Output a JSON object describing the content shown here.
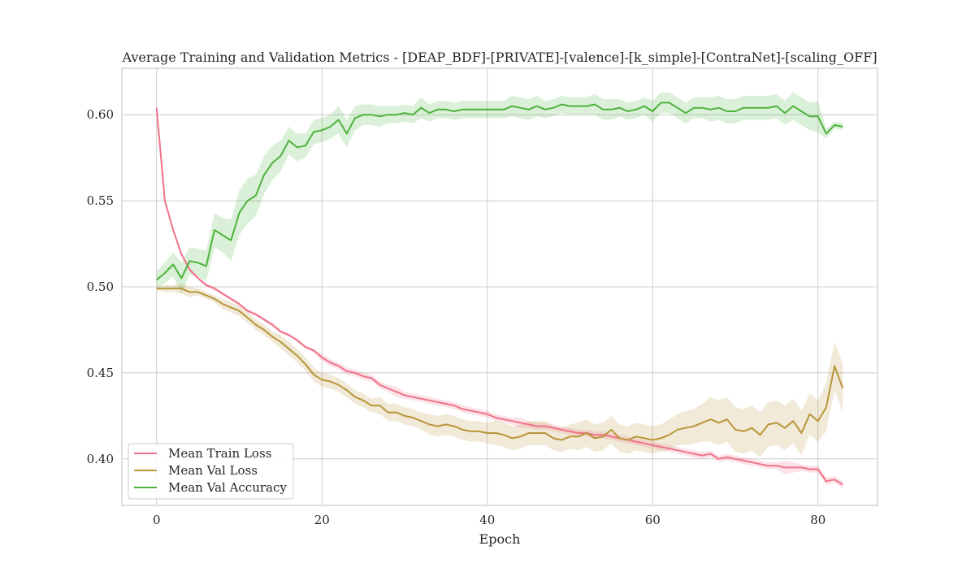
{
  "chart_data": {
    "type": "line",
    "title": "Average Training and Validation Metrics - [DEAP_BDF]-[PRIVATE]-[valence]-[k_simple]-[ContraNet]-[scaling_OFF]",
    "xlabel": "Epoch",
    "ylabel": "",
    "xlim": [
      -4.2,
      87.2
    ],
    "ylim": [
      0.373,
      0.627
    ],
    "xticks": [
      0,
      20,
      40,
      60,
      80
    ],
    "yticks": [
      0.4,
      0.45,
      0.5,
      0.55,
      0.6
    ],
    "xtick_labels": [
      "0",
      "20",
      "40",
      "60",
      "80"
    ],
    "ytick_labels": [
      "0.40",
      "0.45",
      "0.50",
      "0.55",
      "0.60"
    ],
    "grid": true,
    "legend_position": "lower-left",
    "x": [
      0,
      1,
      2,
      3,
      4,
      5,
      6,
      7,
      8,
      9,
      10,
      11,
      12,
      13,
      14,
      15,
      16,
      17,
      18,
      19,
      20,
      21,
      22,
      23,
      24,
      25,
      26,
      27,
      28,
      29,
      30,
      31,
      32,
      33,
      34,
      35,
      36,
      37,
      38,
      39,
      40,
      41,
      42,
      43,
      44,
      45,
      46,
      47,
      48,
      49,
      50,
      51,
      52,
      53,
      54,
      55,
      56,
      57,
      58,
      59,
      60,
      61,
      62,
      63,
      64,
      65,
      66,
      67,
      68,
      69,
      70,
      71,
      72,
      73,
      74,
      75,
      76,
      77,
      78,
      79,
      80,
      81,
      82,
      83
    ],
    "series": [
      {
        "name": "Mean Train Loss",
        "color": "#f0728a",
        "values": [
          0.604,
          0.55,
          0.533,
          0.519,
          0.51,
          0.505,
          0.501,
          0.499,
          0.496,
          0.493,
          0.49,
          0.486,
          0.484,
          0.481,
          0.478,
          0.474,
          0.472,
          0.469,
          0.465,
          0.463,
          0.459,
          0.456,
          0.454,
          0.451,
          0.45,
          0.448,
          0.447,
          0.443,
          0.441,
          0.439,
          0.437,
          0.436,
          0.435,
          0.434,
          0.433,
          0.432,
          0.431,
          0.429,
          0.428,
          0.427,
          0.426,
          0.424,
          0.423,
          0.422,
          0.421,
          0.42,
          0.419,
          0.419,
          0.418,
          0.417,
          0.416,
          0.415,
          0.415,
          0.414,
          0.414,
          0.413,
          0.412,
          0.411,
          0.41,
          0.409,
          0.408,
          0.407,
          0.406,
          0.405,
          0.404,
          0.403,
          0.402,
          0.403,
          0.4,
          0.401,
          0.4,
          0.399,
          0.398,
          0.397,
          0.396,
          0.396,
          0.395,
          0.395,
          0.395,
          0.394,
          0.394,
          0.387,
          0.388,
          0.385
        ],
        "band_width": [
          0.001,
          0.001,
          0.001,
          0.001,
          0.001,
          0.001,
          0.001,
          0.001,
          0.001,
          0.001,
          0.001,
          0.001,
          0.001,
          0.001,
          0.001,
          0.001,
          0.001,
          0.001,
          0.001,
          0.001,
          0.002,
          0.002,
          0.002,
          0.002,
          0.002,
          0.002,
          0.002,
          0.002,
          0.002,
          0.003,
          0.002,
          0.002,
          0.002,
          0.002,
          0.002,
          0.002,
          0.002,
          0.002,
          0.002,
          0.002,
          0.002,
          0.002,
          0.002,
          0.002,
          0.003,
          0.002,
          0.002,
          0.002,
          0.002,
          0.002,
          0.002,
          0.002,
          0.002,
          0.002,
          0.002,
          0.002,
          0.002,
          0.002,
          0.002,
          0.002,
          0.002,
          0.002,
          0.002,
          0.002,
          0.002,
          0.002,
          0.002,
          0.002,
          0.002,
          0.002,
          0.002,
          0.002,
          0.002,
          0.002,
          0.002,
          0.002,
          0.004,
          0.003,
          0.002,
          0.002,
          0.002,
          0.002,
          0.002,
          0.002
        ]
      },
      {
        "name": "Mean Val Loss",
        "color": "#b8963a",
        "values": [
          0.499,
          0.499,
          0.499,
          0.499,
          0.497,
          0.497,
          0.495,
          0.493,
          0.49,
          0.488,
          0.486,
          0.482,
          0.478,
          0.475,
          0.471,
          0.468,
          0.464,
          0.46,
          0.455,
          0.449,
          0.446,
          0.445,
          0.443,
          0.44,
          0.436,
          0.434,
          0.431,
          0.431,
          0.427,
          0.427,
          0.425,
          0.424,
          0.422,
          0.42,
          0.419,
          0.42,
          0.419,
          0.417,
          0.416,
          0.416,
          0.415,
          0.415,
          0.414,
          0.412,
          0.413,
          0.415,
          0.415,
          0.415,
          0.412,
          0.411,
          0.413,
          0.413,
          0.415,
          0.412,
          0.413,
          0.417,
          0.412,
          0.411,
          0.413,
          0.412,
          0.411,
          0.412,
          0.414,
          0.417,
          0.418,
          0.419,
          0.421,
          0.423,
          0.421,
          0.423,
          0.417,
          0.416,
          0.418,
          0.414,
          0.42,
          0.421,
          0.418,
          0.422,
          0.415,
          0.426,
          0.422,
          0.43,
          0.454,
          0.441
        ],
        "band_width": [
          0.001,
          0.002,
          0.002,
          0.003,
          0.003,
          0.002,
          0.002,
          0.002,
          0.003,
          0.003,
          0.003,
          0.003,
          0.003,
          0.003,
          0.003,
          0.004,
          0.004,
          0.004,
          0.004,
          0.004,
          0.004,
          0.004,
          0.004,
          0.004,
          0.004,
          0.004,
          0.004,
          0.005,
          0.005,
          0.005,
          0.005,
          0.005,
          0.005,
          0.006,
          0.006,
          0.006,
          0.006,
          0.006,
          0.006,
          0.006,
          0.006,
          0.007,
          0.007,
          0.007,
          0.007,
          0.007,
          0.007,
          0.007,
          0.007,
          0.007,
          0.007,
          0.008,
          0.008,
          0.008,
          0.008,
          0.008,
          0.008,
          0.008,
          0.008,
          0.008,
          0.008,
          0.008,
          0.009,
          0.009,
          0.01,
          0.01,
          0.011,
          0.013,
          0.013,
          0.013,
          0.013,
          0.013,
          0.013,
          0.013,
          0.013,
          0.013,
          0.013,
          0.013,
          0.013,
          0.012,
          0.012,
          0.014,
          0.014,
          0.014
        ]
      },
      {
        "name": "Mean Val Accuracy",
        "color": "#4db33d",
        "values": [
          0.504,
          0.508,
          0.513,
          0.505,
          0.515,
          0.514,
          0.512,
          0.533,
          0.53,
          0.527,
          0.543,
          0.55,
          0.553,
          0.565,
          0.572,
          0.576,
          0.585,
          0.581,
          0.582,
          0.59,
          0.591,
          0.593,
          0.597,
          0.589,
          0.598,
          0.6,
          0.6,
          0.599,
          0.6,
          0.6,
          0.601,
          0.6,
          0.604,
          0.601,
          0.603,
          0.603,
          0.602,
          0.603,
          0.603,
          0.603,
          0.603,
          0.603,
          0.603,
          0.605,
          0.604,
          0.603,
          0.605,
          0.603,
          0.604,
          0.606,
          0.605,
          0.605,
          0.605,
          0.606,
          0.603,
          0.603,
          0.604,
          0.602,
          0.603,
          0.605,
          0.602,
          0.607,
          0.607,
          0.604,
          0.601,
          0.604,
          0.604,
          0.603,
          0.604,
          0.602,
          0.602,
          0.604,
          0.604,
          0.604,
          0.604,
          0.605,
          0.601,
          0.605,
          0.602,
          0.599,
          0.599,
          0.589,
          0.594,
          0.593
        ],
        "band_width": [
          0.005,
          0.006,
          0.007,
          0.009,
          0.008,
          0.008,
          0.009,
          0.01,
          0.01,
          0.012,
          0.013,
          0.013,
          0.012,
          0.011,
          0.01,
          0.009,
          0.008,
          0.008,
          0.007,
          0.007,
          0.007,
          0.007,
          0.008,
          0.008,
          0.007,
          0.006,
          0.006,
          0.006,
          0.005,
          0.005,
          0.005,
          0.005,
          0.006,
          0.005,
          0.005,
          0.005,
          0.005,
          0.005,
          0.005,
          0.005,
          0.005,
          0.005,
          0.005,
          0.006,
          0.006,
          0.006,
          0.006,
          0.005,
          0.005,
          0.005,
          0.005,
          0.005,
          0.005,
          0.006,
          0.006,
          0.006,
          0.005,
          0.005,
          0.005,
          0.005,
          0.006,
          0.006,
          0.006,
          0.006,
          0.006,
          0.006,
          0.006,
          0.007,
          0.007,
          0.007,
          0.007,
          0.007,
          0.007,
          0.007,
          0.007,
          0.007,
          0.007,
          0.008,
          0.008,
          0.008,
          0.009,
          0.003,
          0.002,
          0.002
        ]
      }
    ]
  }
}
